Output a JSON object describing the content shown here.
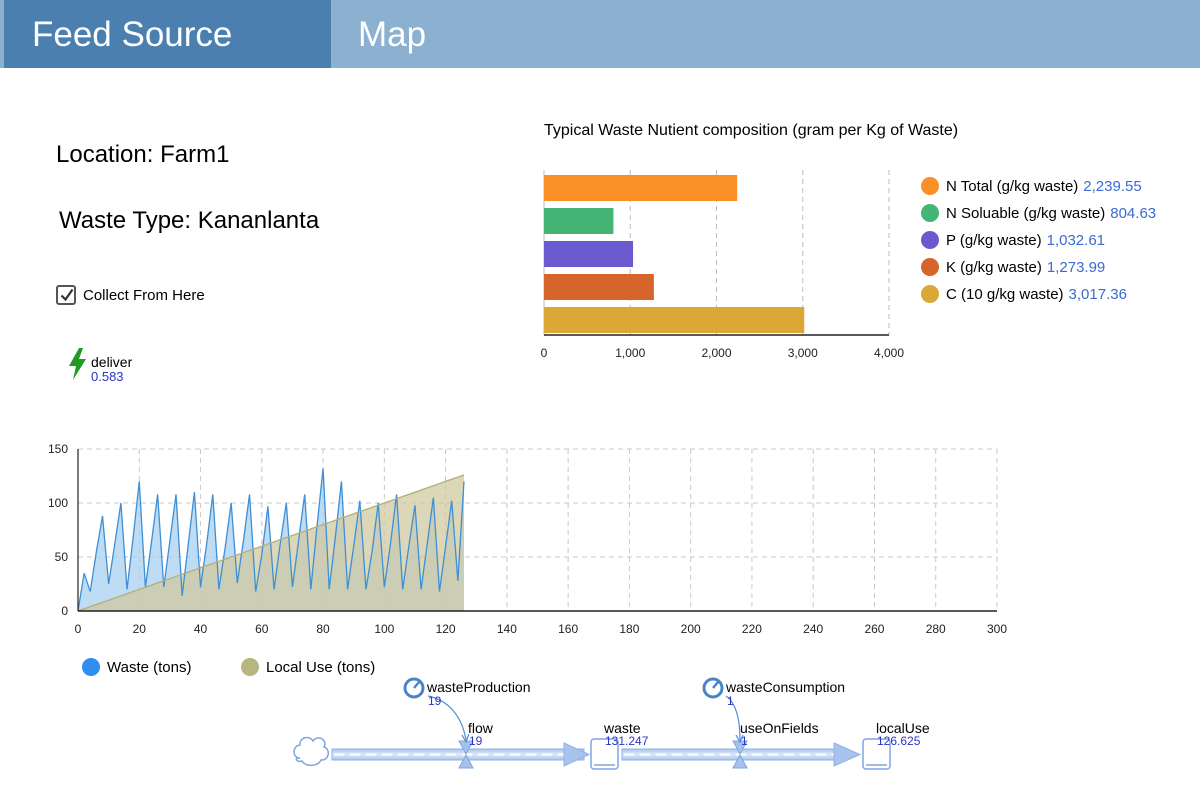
{
  "tabs": [
    {
      "label": "Feed Source",
      "active": true
    },
    {
      "label": "Map",
      "active": false
    }
  ],
  "location_text": "Location: Farm1",
  "waste_type_text": "Waste Type: Kananlanta",
  "collect": {
    "label": "Collect From Here",
    "checked": true
  },
  "deliver": {
    "name": "deliver",
    "value": "0.583"
  },
  "colors": {
    "tab_active": "#4a7fb0",
    "tab_bar": "#8bb0d0",
    "waste_line": "#3d8fd6",
    "waste_fill": "#a8d0f0",
    "local_fill": "#cfc9a0",
    "value_blue": "#2a36c4",
    "legend_value": "#3a6ad4"
  },
  "nutrient_chart": {
    "type": "bar",
    "title": "Typical Waste Nutient composition (gram per Kg of Waste)",
    "categories": [
      "N Total (g/kg waste)",
      "N Soluable (g/kg waste)",
      "P (g/kg waste)",
      "K (g/kg waste)",
      "C (10 g/kg waste)"
    ],
    "values": [
      2239.55,
      804.63,
      1032.61,
      1273.99,
      3017.36
    ],
    "value_labels": [
      "2,239.55",
      "804.63",
      "1,032.61",
      "1,273.99",
      "3,017.36"
    ],
    "colors": [
      "#fb9028",
      "#44b574",
      "#6a5acd",
      "#d6652c",
      "#dba835"
    ],
    "xlim": [
      0,
      4000
    ],
    "xticks": [
      "0",
      "1,000",
      "2,000",
      "3,000",
      "4,000"
    ],
    "grid": true,
    "legend_position": "right"
  },
  "chart_data": {
    "type": "area",
    "x": [
      0,
      2,
      4,
      6,
      8,
      10,
      12,
      14,
      16,
      18,
      20,
      22,
      24,
      26,
      28,
      30,
      32,
      34,
      36,
      38,
      40,
      42,
      44,
      46,
      48,
      50,
      52,
      54,
      56,
      58,
      60,
      62,
      64,
      66,
      68,
      70,
      72,
      74,
      76,
      78,
      80,
      82,
      84,
      86,
      88,
      90,
      92,
      94,
      96,
      98,
      100,
      102,
      104,
      106,
      108,
      110,
      112,
      114,
      116,
      118,
      120,
      122,
      124,
      126
    ],
    "series": [
      {
        "name": "Waste (tons)",
        "values": [
          0,
          35,
          18,
          55,
          88,
          25,
          62,
          100,
          20,
          68,
          120,
          22,
          64,
          108,
          22,
          65,
          108,
          14,
          62,
          110,
          22,
          62,
          108,
          20,
          58,
          100,
          26,
          65,
          108,
          18,
          52,
          97,
          20,
          62,
          100,
          22,
          65,
          108,
          20,
          78,
          132,
          20,
          68,
          120,
          20,
          60,
          102,
          20,
          55,
          100,
          22,
          62,
          108,
          20,
          60,
          98,
          20,
          62,
          105,
          18,
          60,
          102,
          28,
          120
        ]
      },
      {
        "name": "Local Use (tons)",
        "values": [
          0,
          2,
          4,
          6,
          8,
          10,
          12,
          14,
          16,
          18,
          20,
          22,
          24,
          26,
          28,
          30,
          32,
          34,
          36,
          38,
          40,
          42,
          44,
          46,
          48,
          50,
          52,
          54,
          56,
          58,
          60,
          62,
          64,
          66,
          68,
          70,
          72,
          74,
          76,
          78,
          80,
          82,
          84,
          86,
          88,
          90,
          92,
          94,
          96,
          98,
          100,
          102,
          104,
          106,
          108,
          110,
          112,
          114,
          116,
          118,
          120,
          122,
          124,
          126
        ]
      }
    ],
    "xlim": [
      0,
      300
    ],
    "ylim": [
      0,
      150
    ],
    "xticks": [
      "0",
      "20",
      "40",
      "60",
      "80",
      "100",
      "120",
      "140",
      "160",
      "180",
      "200",
      "220",
      "240",
      "260",
      "280",
      "300"
    ],
    "yticks": [
      "0",
      "50",
      "100",
      "150"
    ],
    "grid": true,
    "legend_position": "bottom-left"
  },
  "flow_diagram": {
    "variables": [
      {
        "name": "wasteProduction",
        "value": "19"
      },
      {
        "name": "wasteConsumption",
        "value": "1"
      }
    ],
    "flows": [
      {
        "name": "flow",
        "value": "19"
      },
      {
        "name": "useOnFields",
        "value": "1"
      }
    ],
    "stocks": [
      {
        "name": "waste",
        "value": "131.247"
      },
      {
        "name": "localUse",
        "value": "126.625"
      }
    ]
  }
}
